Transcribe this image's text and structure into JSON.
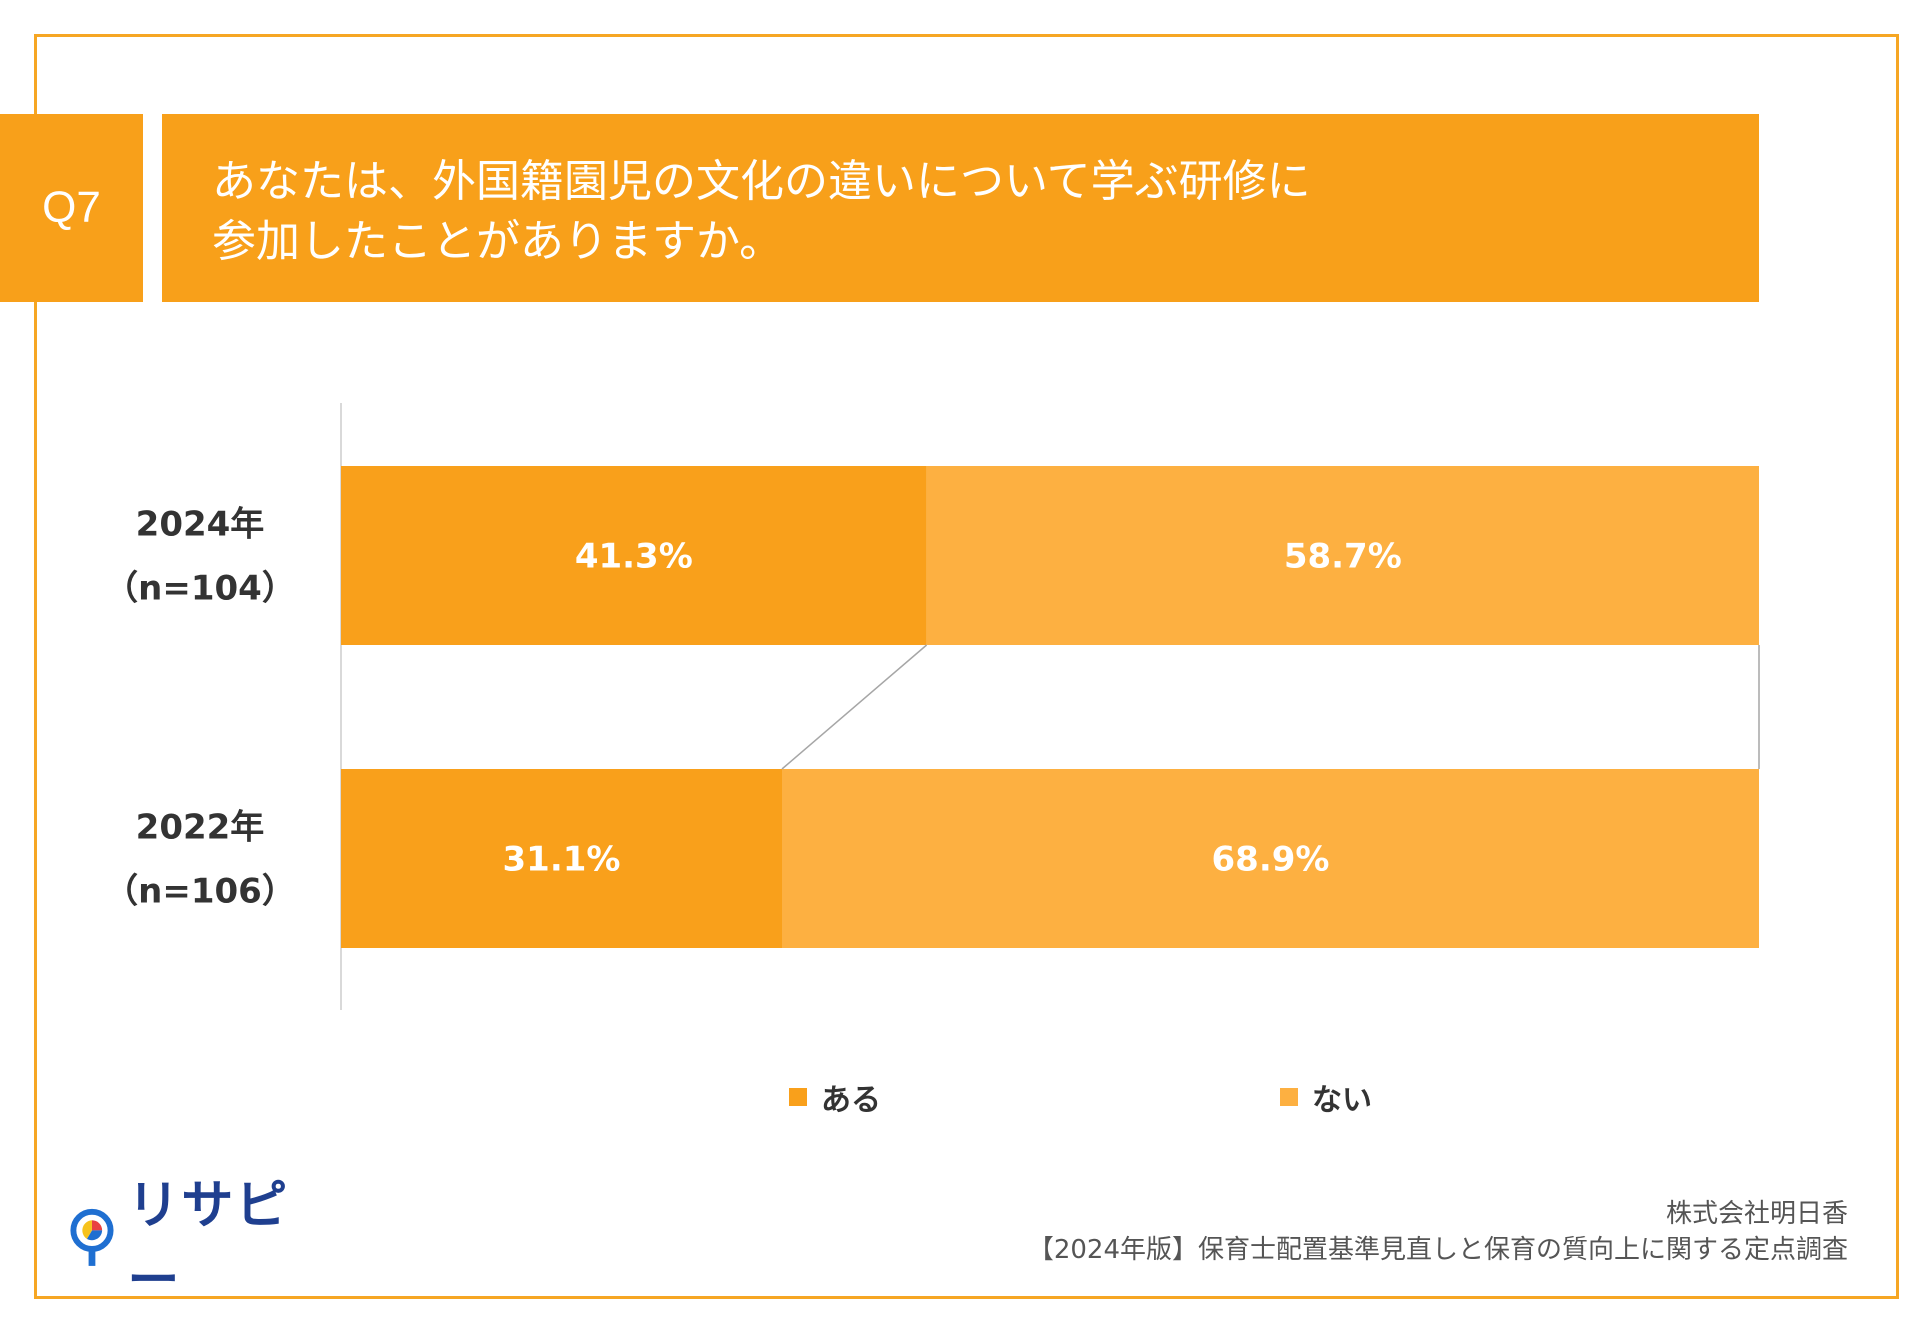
{
  "question": {
    "number": "Q7",
    "lines": [
      "あなたは、外国籍園児の文化の違いについて学ぶ研修に",
      "参加したことがありますか。"
    ]
  },
  "colors": {
    "frame": "#f6a623",
    "header_bg": "#f8a01a",
    "aru": "#f9a01b",
    "nai": "#fdb041",
    "connector": "#a6a6a6",
    "axis": "#d9d9d9",
    "label_text": "#333333",
    "brand": "#1f3f8f"
  },
  "chart_data": {
    "type": "bar",
    "orientation": "horizontal",
    "stacked": "percent",
    "categories": [
      [
        "2024年",
        "（n=104）"
      ],
      [
        "2022年",
        "（n=106）"
      ]
    ],
    "series": [
      {
        "name": "ある",
        "values": [
          41.3,
          31.1
        ],
        "labels": [
          "41.3%",
          "31.1%"
        ]
      },
      {
        "name": "ない",
        "values": [
          58.7,
          68.9
        ],
        "labels": [
          "58.7%",
          "68.9%"
        ]
      }
    ],
    "xlim": [
      0,
      100
    ],
    "grid": false,
    "legend_position": "bottom",
    "series_lines": true
  },
  "footer": {
    "company": "株式会社明日香",
    "survey": "【2024年版】保育士配置基準見直しと保育の質向上に関する定点調査"
  },
  "logo": {
    "text": "リサピー",
    "icon": "pin-icon"
  }
}
